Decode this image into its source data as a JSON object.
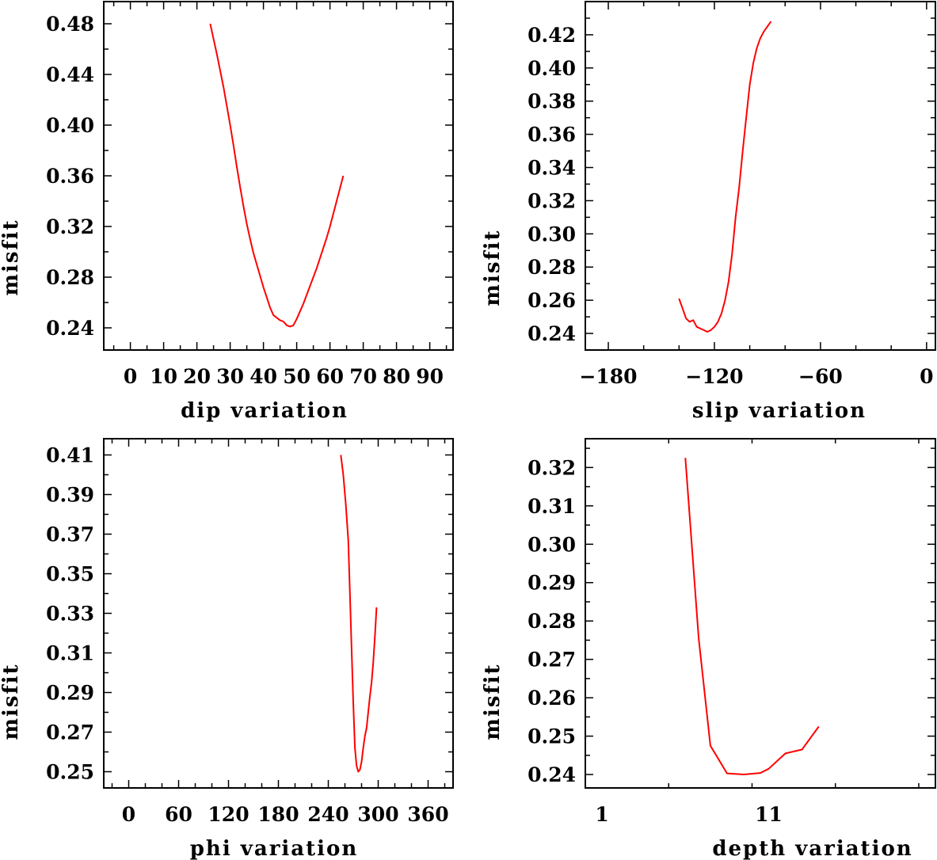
{
  "colors": {
    "line": "#ff0000",
    "axis": "#000000",
    "background": "#ffffff"
  },
  "chart_data": [
    {
      "type": "line",
      "xlabel": "dip    variation",
      "ylabel": "misfit",
      "xlim": [
        -8,
        97
      ],
      "ylim": [
        0.2225,
        0.4975
      ],
      "xticks": [
        0,
        10,
        20,
        30,
        40,
        50,
        60,
        70,
        80,
        90
      ],
      "xtick_labels": [
        "0",
        "10",
        "20",
        "30",
        "40",
        "50",
        "60",
        "70",
        "80",
        "90"
      ],
      "xtick_minor_step": 5,
      "yticks": [
        0.24,
        0.28,
        0.32,
        0.36,
        0.4,
        0.44,
        0.48
      ],
      "ytick_labels": [
        "0.24",
        "0.28",
        "0.32",
        "0.36",
        "0.40",
        "0.44",
        "0.48"
      ],
      "ytick_minor_step": 0.02,
      "x": [
        24,
        25,
        26,
        27,
        28,
        29,
        30,
        31,
        32,
        33,
        34,
        35,
        36,
        37,
        38,
        39,
        40,
        41,
        42,
        43,
        44,
        45,
        46,
        47,
        48,
        49,
        50,
        51,
        52,
        53,
        54,
        55,
        56,
        57,
        58,
        59,
        60,
        61,
        62,
        63,
        64
      ],
      "y": [
        0.48,
        0.468,
        0.456,
        0.443,
        0.43,
        0.415,
        0.4,
        0.384,
        0.367,
        0.351,
        0.336,
        0.322,
        0.31,
        0.299,
        0.29,
        0.281,
        0.272,
        0.264,
        0.256,
        0.25,
        0.248,
        0.246,
        0.245,
        0.242,
        0.241,
        0.242,
        0.247,
        0.253,
        0.259,
        0.266,
        0.273,
        0.28,
        0.287,
        0.295,
        0.303,
        0.311,
        0.32,
        0.33,
        0.34,
        0.35,
        0.36
      ]
    },
    {
      "type": "line",
      "xlabel": "slip   variation",
      "ylabel": "misfit",
      "xlim": [
        -193,
        5
      ],
      "ylim": [
        0.23,
        0.44
      ],
      "xticks": [
        -180,
        -120,
        -60,
        0
      ],
      "xtick_labels": [
        "−180",
        "−120",
        "−60",
        "0"
      ],
      "xtick_minor_step": 20,
      "yticks": [
        0.24,
        0.26,
        0.28,
        0.3,
        0.32,
        0.34,
        0.36,
        0.38,
        0.4,
        0.42
      ],
      "ytick_labels": [
        "0.24",
        "0.26",
        "0.28",
        "0.30",
        "0.32",
        "0.34",
        "0.36",
        "0.38",
        "0.40",
        "0.42"
      ],
      "ytick_minor_step": 0.01,
      "x": [
        -140,
        -138,
        -136,
        -134,
        -132,
        -130,
        -128,
        -126,
        -124,
        -122,
        -120,
        -118,
        -116,
        -114,
        -112,
        -110,
        -108,
        -106,
        -104,
        -102,
        -100,
        -98,
        -96,
        -94,
        -92,
        -90,
        -88
      ],
      "y": [
        0.261,
        0.255,
        0.249,
        0.247,
        0.248,
        0.244,
        0.243,
        0.242,
        0.241,
        0.242,
        0.244,
        0.247,
        0.252,
        0.26,
        0.271,
        0.288,
        0.31,
        0.328,
        0.35,
        0.37,
        0.39,
        0.403,
        0.412,
        0.418,
        0.422,
        0.425,
        0.428
      ]
    },
    {
      "type": "line",
      "xlabel": "phi    variation",
      "ylabel": "misfit",
      "xlim": [
        -30,
        390
      ],
      "ylim": [
        0.2418,
        0.4182
      ],
      "xticks": [
        0,
        60,
        120,
        180,
        240,
        300,
        360
      ],
      "xtick_labels": [
        "0",
        "60",
        "120",
        "180",
        "240",
        "300",
        "360"
      ],
      "xtick_minor_step": 20,
      "yticks": [
        0.25,
        0.27,
        0.29,
        0.31,
        0.33,
        0.35,
        0.37,
        0.39,
        0.41
      ],
      "ytick_labels": [
        "0.25",
        "0.27",
        "0.29",
        "0.31",
        "0.33",
        "0.35",
        "0.37",
        "0.39",
        "0.41"
      ],
      "ytick_minor_step": 0.01,
      "x": [
        255,
        258,
        261,
        264,
        266,
        268,
        270,
        272,
        274,
        276,
        278,
        280,
        282,
        284,
        286,
        288,
        290,
        292,
        294,
        296,
        298
      ],
      "y": [
        0.41,
        0.4,
        0.385,
        0.367,
        0.34,
        0.312,
        0.285,
        0.262,
        0.253,
        0.25,
        0.251,
        0.255,
        0.262,
        0.268,
        0.272,
        0.28,
        0.288,
        0.295,
        0.305,
        0.318,
        0.333
      ]
    },
    {
      "type": "line",
      "xlabel": "depth  variation",
      "ylabel": "misfit",
      "xlim": [
        0,
        21
      ],
      "ylim": [
        0.2365,
        0.3275
      ],
      "xticks": [
        1,
        11
      ],
      "xtick_labels": [
        "1",
        "11"
      ],
      "xtick_minor_step": 5,
      "yticks": [
        0.24,
        0.25,
        0.26,
        0.27,
        0.28,
        0.29,
        0.3,
        0.31,
        0.32
      ],
      "ytick_labels": [
        "0.24",
        "0.25",
        "0.26",
        "0.27",
        "0.28",
        "0.29",
        "0.30",
        "0.31",
        "0.32"
      ],
      "ytick_minor_step": 0.005,
      "x": [
        6,
        6.8,
        7.5,
        8.5,
        9.5,
        10.5,
        11,
        12,
        13,
        14
      ],
      "y": [
        0.3225,
        0.2755,
        0.2475,
        0.2403,
        0.24,
        0.2404,
        0.2415,
        0.2455,
        0.2465,
        0.2525
      ]
    }
  ]
}
